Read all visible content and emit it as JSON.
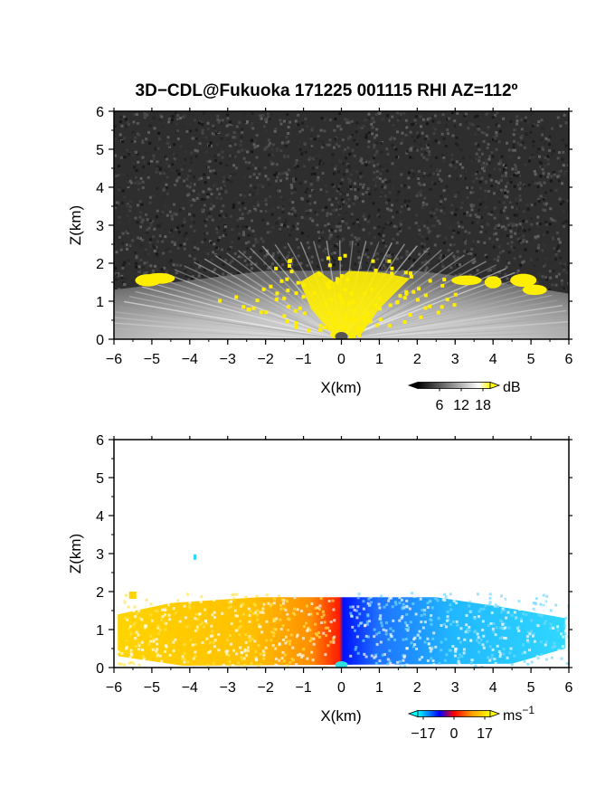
{
  "title": "3D−CDL@Fukuoka 171225 001115 RHI AZ=112º",
  "chart_data": [
    {
      "type": "heatmap",
      "name": "reflectivity-panel",
      "xlabel": "X(km)",
      "ylabel": "Z(km)",
      "xlim": [
        -6,
        6
      ],
      "ylim": [
        0,
        6
      ],
      "xticks": [
        "−6",
        "−5",
        "−4",
        "−3",
        "−2",
        "−1",
        "0",
        "1",
        "2",
        "3",
        "4",
        "5",
        "6"
      ],
      "yticks": [
        "0",
        "1",
        "2",
        "3",
        "4",
        "5",
        "6"
      ],
      "colorbar": {
        "unit": "dB",
        "ticks": [
          "6",
          "12",
          "18"
        ],
        "tick_values": [
          6,
          12,
          18
        ],
        "range": [
          0,
          20
        ],
        "colors": [
          "#000000",
          "#ffffff",
          "#ffff00"
        ]
      },
      "signal_top_km": 1.8,
      "noise_color": "#2e2e2e",
      "high_value_color": "#ffee00"
    },
    {
      "type": "heatmap",
      "name": "doppler-velocity-panel",
      "xlabel": "X(km)",
      "ylabel": "Z(km)",
      "xlim": [
        -6,
        6
      ],
      "ylim": [
        0,
        6
      ],
      "xticks": [
        "−6",
        "−5",
        "−4",
        "−3",
        "−2",
        "−1",
        "0",
        "1",
        "2",
        "3",
        "4",
        "5",
        "6"
      ],
      "yticks": [
        "0",
        "1",
        "2",
        "3",
        "4",
        "5",
        "6"
      ],
      "colorbar": {
        "unit": "ms",
        "unit_sup": "−1",
        "ticks": [
          "−17",
          "0",
          "17"
        ],
        "tick_values": [
          -17,
          0,
          17
        ],
        "range": [
          -20,
          20
        ],
        "colors": [
          "#00ffff",
          "#0000ff",
          "#ff0000",
          "#ffff00"
        ]
      },
      "signal_top_km": 1.8,
      "negative_side": "x>0",
      "positive_side": "x<0"
    }
  ]
}
